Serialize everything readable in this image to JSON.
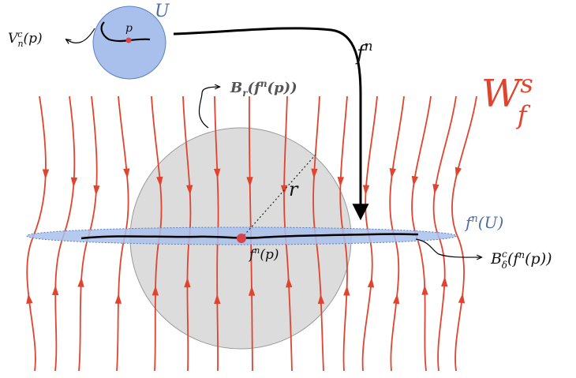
{
  "labels": {
    "U": "U",
    "p": "p",
    "V_main": "V",
    "V_sub": "n",
    "V_sup": "c",
    "V_arg": "(p)",
    "f_main": "f",
    "f_sup": "n",
    "B_r_main": "B",
    "B_r_sub": "r",
    "B_r_arg_open": "(f",
    "B_r_arg_sup": "n",
    "B_r_arg_close": "(p))",
    "r": "r",
    "W_main": "W",
    "W_sup": "s",
    "W_sub": "f",
    "fnU_main": "f",
    "fnU_sup": "n",
    "fnU_arg": "(U)",
    "fnp_main": "f",
    "fnp_sup": "n",
    "fnp_arg": "(p)",
    "Bd_main": "B",
    "Bd_sup": "c",
    "Bd_sub": "δ",
    "Bd_arg_open": "(f",
    "Bd_arg_sup": "n",
    "Bd_arg_close": "(p))"
  },
  "colors": {
    "leaf_red": "#e0442e",
    "disc_blue": "#a9c0ec",
    "ball_gray": "#dcdcdc",
    "label_blue": "#4a6fa5",
    "point_red": "#d9434a"
  }
}
